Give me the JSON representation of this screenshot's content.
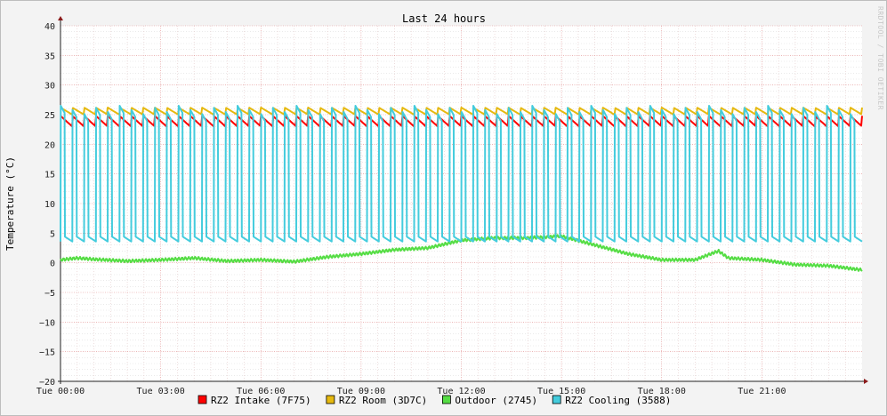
{
  "chart_data": {
    "type": "line",
    "title": "Last 24 hours",
    "ylabel": "Temperature (°C)",
    "xlabel": "",
    "ylim": [
      -20,
      40
    ],
    "yticks": [
      40,
      35,
      30,
      25,
      20,
      15,
      10,
      5,
      0,
      -5,
      -10,
      -15,
      -20
    ],
    "xlim_hours": [
      0,
      24
    ],
    "xticks": [
      {
        "hour": 0,
        "label": "Tue 00:00"
      },
      {
        "hour": 3,
        "label": "Tue 03:00"
      },
      {
        "hour": 6,
        "label": "Tue 06:00"
      },
      {
        "hour": 9,
        "label": "Tue 09:00"
      },
      {
        "hour": 12,
        "label": "Tue 12:00"
      },
      {
        "hour": 15,
        "label": "Tue 15:00"
      },
      {
        "hour": 18,
        "label": "Tue 18:00"
      },
      {
        "hour": 21,
        "label": "Tue 21:00"
      }
    ],
    "grid": true,
    "legend_position": "bottom",
    "series": [
      {
        "name": "RZ2 Intake (7F75)",
        "color": "#ff0000",
        "pattern": {
          "type": "sawtooth",
          "low": 23.0,
          "high": 24.8,
          "cycles": 68
        },
        "x": [
          0,
          24
        ],
        "y": [
          23.9,
          23.9
        ]
      },
      {
        "name": "RZ2 Room (3D7C)",
        "color": "#e6b90f",
        "pattern": {
          "type": "sawtooth",
          "low": 25.0,
          "high": 26.2,
          "cycles": 68
        },
        "x": [
          0,
          24
        ],
        "y": [
          25.6,
          25.6
        ]
      },
      {
        "name": "Outdoor (2745)",
        "color": "#55dd44",
        "x": [
          0,
          0.5,
          1,
          2,
          3,
          4,
          5,
          6,
          7,
          8,
          9,
          10,
          11,
          12,
          13,
          14,
          15,
          16,
          17,
          18,
          19,
          19.7,
          20,
          21,
          22,
          23,
          24
        ],
        "y": [
          0.5,
          0.8,
          0.6,
          0.3,
          0.5,
          0.8,
          0.3,
          0.5,
          0.2,
          1.0,
          1.5,
          2.2,
          2.5,
          3.8,
          4.2,
          4.2,
          4.5,
          3.0,
          1.5,
          0.5,
          0.5,
          2.0,
          0.8,
          0.5,
          -0.3,
          -0.5,
          -1.2
        ]
      },
      {
        "name": "RZ2 Cooling (3588)",
        "color": "#44ccdd",
        "pattern": {
          "type": "cycling",
          "low": 3.6,
          "high": 26.5,
          "cycles": 68,
          "on_fraction": 0.35
        },
        "x": [
          0,
          24
        ],
        "y": [
          3.6,
          26.5
        ]
      }
    ]
  },
  "side_label": "RRDTOOL / TOBI OETIKER"
}
